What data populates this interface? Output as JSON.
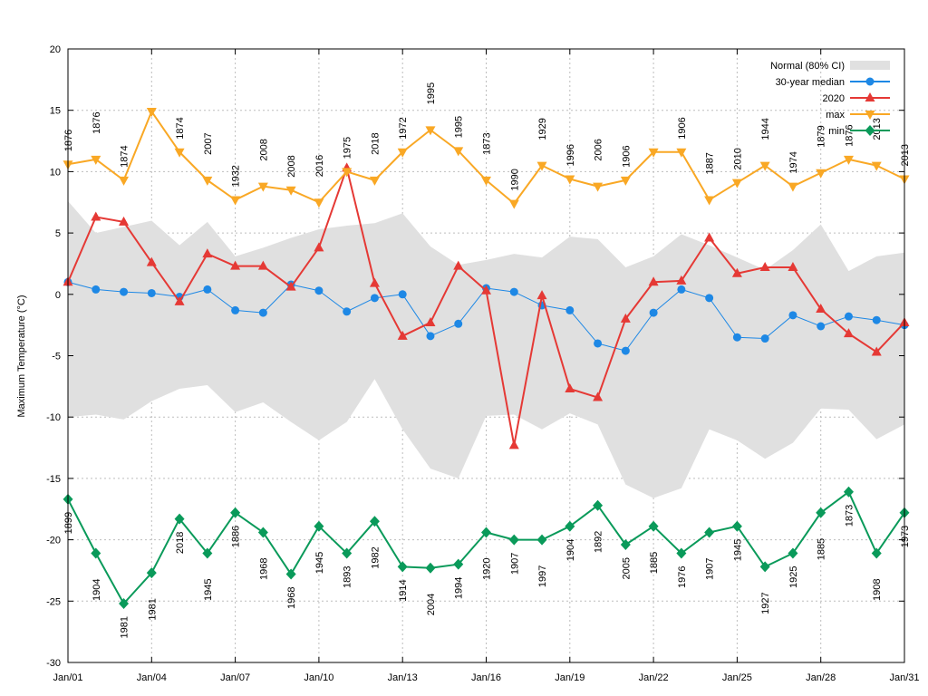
{
  "chart_data": {
    "type": "line",
    "title": "",
    "xlabel": "",
    "ylabel": "Maximum Temperature (°C)",
    "ylim": [
      -30,
      20
    ],
    "yticks": [
      20,
      15,
      10,
      5,
      0,
      -5,
      -10,
      -15,
      -20,
      -25,
      -30
    ],
    "xlim": [
      1,
      31
    ],
    "xticks": [
      {
        "day": 1,
        "label": "Jan/01"
      },
      {
        "day": 4,
        "label": "Jan/04"
      },
      {
        "day": 7,
        "label": "Jan/07"
      },
      {
        "day": 10,
        "label": "Jan/10"
      },
      {
        "day": 13,
        "label": "Jan/13"
      },
      {
        "day": 16,
        "label": "Jan/16"
      },
      {
        "day": 19,
        "label": "Jan/19"
      },
      {
        "day": 22,
        "label": "Jan/22"
      },
      {
        "day": 25,
        "label": "Jan/25"
      },
      {
        "day": 28,
        "label": "Jan/28"
      },
      {
        "day": 31,
        "label": "Jan/31"
      }
    ],
    "grid": true,
    "legend_position": "top-right",
    "normal_band": {
      "name": "Normal (80% CI)",
      "color": "#e0e0e0",
      "upper": [
        7.6,
        5.0,
        5.5,
        6.0,
        4.0,
        5.9,
        3.1,
        3.8,
        4.6,
        5.3,
        5.6,
        5.8,
        6.6,
        3.9,
        2.4,
        2.8,
        3.3,
        3.0,
        4.7,
        4.5,
        2.2,
        3.1,
        4.9,
        4.0,
        3.0,
        2.0,
        3.6,
        5.7,
        1.9,
        3.1,
        3.4
      ],
      "lower": [
        -10.0,
        -9.8,
        -10.2,
        -8.7,
        -7.7,
        -7.4,
        -9.6,
        -8.8,
        -10.4,
        -11.9,
        -10.4,
        -6.9,
        -11.0,
        -14.2,
        -15.0,
        -9.9,
        -9.8,
        -11.0,
        -9.7,
        -10.6,
        -15.5,
        -16.6,
        -15.8,
        -11.0,
        -11.9,
        -13.4,
        -12.1,
        -9.3,
        -9.4,
        -11.8,
        -10.6
      ]
    },
    "series": [
      {
        "name": "30-year median",
        "color": "#1e88e5",
        "marker": "circle",
        "line_width": 1,
        "values": [
          1.0,
          0.4,
          0.2,
          0.1,
          -0.2,
          0.4,
          -1.3,
          -1.5,
          0.8,
          0.3,
          -1.4,
          -0.3,
          0.0,
          -3.4,
          -2.4,
          0.5,
          0.2,
          -0.9,
          -1.3,
          -4.0,
          -4.6,
          -1.5,
          0.4,
          -0.3,
          -3.5,
          -3.6,
          -1.7,
          -2.6,
          -1.8,
          -2.1,
          -2.5
        ]
      },
      {
        "name": "2020",
        "color": "#e53935",
        "marker": "triangle-up",
        "line_width": 2,
        "values": [
          1.0,
          6.3,
          5.9,
          2.6,
          -0.6,
          3.3,
          2.3,
          2.3,
          0.6,
          3.8,
          10.3,
          0.9,
          -3.4,
          -2.3,
          2.3,
          0.3,
          -12.3,
          -0.1,
          -7.7,
          -8.4,
          -2.0,
          1.0,
          1.1,
          4.6,
          1.7,
          2.2,
          2.2,
          -1.2,
          -3.2,
          -4.7,
          -2.3
        ]
      },
      {
        "name": "max",
        "color": "#f9a825",
        "marker": "triangle-down",
        "line_width": 2,
        "values": [
          10.6,
          11.0,
          9.3,
          14.9,
          11.6,
          9.3,
          7.7,
          8.8,
          8.5,
          7.5,
          10.0,
          9.3,
          11.6,
          13.4,
          11.7,
          9.3,
          7.4,
          10.5,
          9.4,
          8.8,
          9.3,
          11.6,
          11.6,
          7.7,
          9.1,
          10.5,
          8.8,
          9.9,
          11.0,
          10.5,
          9.4
        ],
        "year_labels": [
          "1876",
          "1876",
          "1874",
          "",
          "1874",
          "2007",
          "1932",
          "2008",
          "2008",
          "2016",
          "1975",
          "2018",
          "1972",
          "1995",
          "1995",
          "1873",
          "1990",
          "1929",
          "1996",
          "2006",
          "1906",
          "",
          "1906",
          "1887",
          "2010",
          "1944",
          "1974",
          "1879",
          "1876",
          "2013",
          "2013"
        ]
      },
      {
        "name": "min",
        "color": "#0a9a5a",
        "marker": "diamond",
        "line_width": 2,
        "values": [
          -16.7,
          -21.1,
          -25.2,
          -22.7,
          -18.3,
          -21.1,
          -17.8,
          -19.4,
          -22.8,
          -18.9,
          -21.1,
          -18.5,
          -22.2,
          -22.3,
          -22.0,
          -19.4,
          -20.0,
          -20.0,
          -18.9,
          -17.2,
          -20.4,
          -18.9,
          -21.1,
          -19.4,
          -18.9,
          -22.2,
          -21.1,
          -17.8,
          -16.1,
          -21.1,
          -17.8
        ],
        "year_labels": [
          "1899",
          "1904",
          "1981",
          "1981",
          "2018",
          "1945",
          "1886",
          "1968",
          "1968",
          "1945",
          "1893",
          "1982",
          "1914",
          "2004",
          "1994",
          "1920",
          "1907",
          "1997",
          "1904",
          "1892",
          "2005",
          "1885",
          "1976",
          "1907",
          "1945",
          "1927",
          "1925",
          "1885",
          "1873",
          "1908",
          "1973"
        ]
      }
    ]
  }
}
